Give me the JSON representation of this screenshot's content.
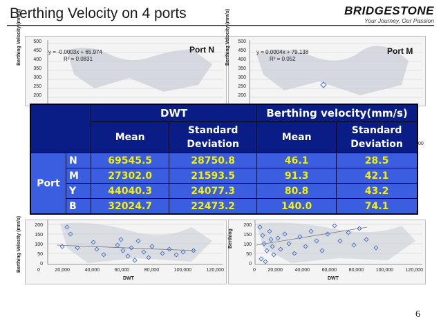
{
  "header": {
    "title": "Berthing Velocity on 4 ports",
    "logo_text": "BRIDGESTONE",
    "logo_tagline": "Your Journey, Our Passion"
  },
  "charts": {
    "top_left": {
      "port": "Port N",
      "equation": "y = -0.0003x + 65.974",
      "r2": "R² = 0.0831",
      "ylabel": "Berthing Velocity (mm/s)",
      "yticks": [
        "500",
        "450",
        "400",
        "350",
        "300",
        "250",
        "200"
      ]
    },
    "top_right": {
      "port": "Port M",
      "equation": "y = 0.0004x + 79.138",
      "r2": "R² = 0.052",
      "ylabel": "Berthing Velocity (mm/s)",
      "yticks": [
        "500",
        "450",
        "400",
        "350",
        "300",
        "250",
        "200"
      ],
      "right_tick": "00"
    },
    "bottom_left": {
      "ylabel": "Berthing Velocity (mm/s)",
      "xlabel": "DWT",
      "yticks": [
        "200",
        "150",
        "100",
        "50",
        "0"
      ],
      "xticks": [
        "0",
        "20,000",
        "40,000",
        "60,000",
        "80,000",
        "100,000",
        "120,000"
      ]
    },
    "bottom_right": {
      "ylabel": "Berthing",
      "xlabel": "DWT",
      "yticks": [
        "200",
        "150",
        "100",
        "50",
        "0"
      ],
      "xticks": [
        "0",
        "20,000",
        "40,000",
        "60,000",
        "80,000",
        "100,000",
        "120,000"
      ]
    }
  },
  "table": {
    "group_dwt": "DWT",
    "group_velocity": "Berthing velocity(mm/s)",
    "col_mean_1": "Mean",
    "col_std_1a": "Standard",
    "col_std_1b": "Deviation",
    "col_mean_2": "Mean",
    "col_std_2a": "Standard",
    "col_std_2b": "Deviation",
    "row_group": "Port",
    "rows": [
      {
        "code": "N",
        "dwt_mean": "69545.5",
        "dwt_std": "28750.8",
        "vel_mean": "46.1",
        "vel_std": "28.5"
      },
      {
        "code": "M",
        "dwt_mean": "27302.0",
        "dwt_std": "21593.5",
        "vel_mean": "91.3",
        "vel_std": "42.1"
      },
      {
        "code": "Y",
        "dwt_mean": "44040.3",
        "dwt_std": "24077.3",
        "vel_mean": "80.8",
        "vel_std": "43.2"
      },
      {
        "code": "B",
        "dwt_mean": "32024.7",
        "dwt_std": "22473.2",
        "vel_mean": "140.0",
        "vel_std": "74.1"
      }
    ]
  },
  "page_number": "6"
}
